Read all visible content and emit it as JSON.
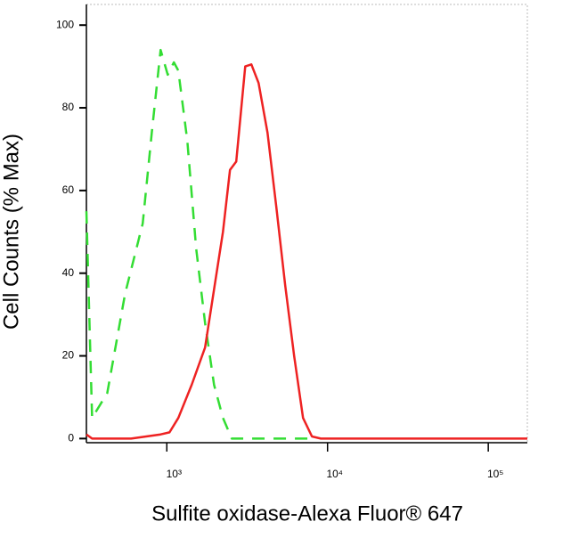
{
  "chart_data": {
    "type": "line",
    "xlabel": "Sulfite oxidase-Alexa Fluor® 647",
    "ylabel": "Cell Counts (% Max)",
    "xscale": "log",
    "xlim": [
      316,
      175000
    ],
    "ylim": [
      -1,
      105
    ],
    "xticks": [
      {
        "value": 1000,
        "label": "10³"
      },
      {
        "value": 10000,
        "label": "10⁴"
      },
      {
        "value": 100000,
        "label": "10⁵"
      }
    ],
    "yticks": [
      0,
      20,
      40,
      60,
      80,
      100
    ],
    "series": [
      {
        "color": "#33dd33",
        "dashed": true,
        "x": [
          316,
          343,
          426,
          550,
          708,
          806,
          915,
          1013,
          1107,
          1180,
          1341,
          1523,
          1730,
          1967,
          2234,
          2536,
          8000
        ],
        "values": [
          55,
          5,
          11,
          35,
          52,
          74,
          94,
          88,
          91,
          89,
          72,
          46,
          28,
          13,
          5,
          0,
          0
        ]
      },
      {
        "color": "#ee2222",
        "dashed": false,
        "x": [
          316,
          343,
          600,
          915,
          1040,
          1180,
          1429,
          1730,
          2234,
          2472,
          2704,
          3074,
          3360,
          3722,
          4230,
          4802,
          5455,
          6196,
          7040,
          8000,
          9083,
          175000
        ],
        "values": [
          1,
          0,
          0,
          1,
          1.5,
          5,
          13,
          22,
          50,
          65,
          67,
          90,
          90.5,
          86,
          74,
          56,
          37,
          20,
          5,
          0.5,
          0,
          0
        ]
      }
    ]
  }
}
